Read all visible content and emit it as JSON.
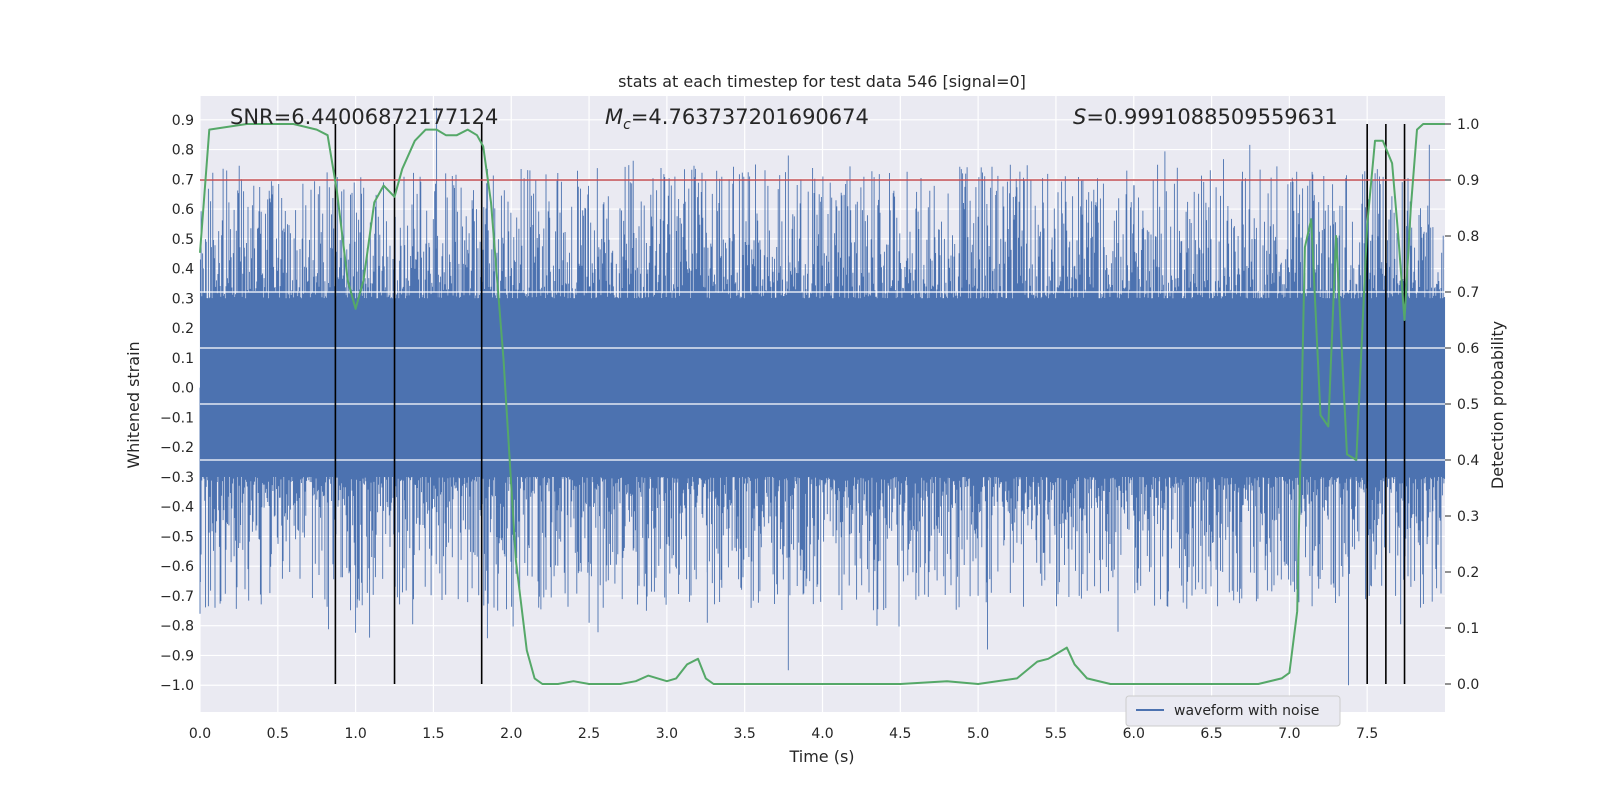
{
  "chart_data": {
    "type": "line",
    "title": "stats at each timestep for test data 546 [signal=0]",
    "xlabel": "Time (s)",
    "ylabel_left": "Whitened strain",
    "ylabel_right": "Detection probability",
    "xlim": [
      0.0,
      8.0
    ],
    "ylim_left": [
      -1.09,
      0.98
    ],
    "ylim_right": [
      -0.05,
      1.05
    ],
    "x_ticks": [
      "0.0",
      "0.5",
      "1.0",
      "1.5",
      "2.0",
      "2.5",
      "3.0",
      "3.5",
      "4.0",
      "4.5",
      "5.0",
      "5.5",
      "6.0",
      "6.5",
      "7.0",
      "7.5"
    ],
    "y_ticks_left": [
      "0.9",
      "0.8",
      "0.7",
      "0.6",
      "0.5",
      "0.4",
      "0.3",
      "0.2",
      "0.1",
      "0.0",
      "−0.1",
      "−0.2",
      "−0.3",
      "−0.4",
      "−0.5",
      "−0.6",
      "−0.7",
      "−0.8",
      "−0.9",
      "−1.0"
    ],
    "y_ticks_right": [
      "1.0",
      "0.9",
      "0.8",
      "0.7",
      "0.6",
      "0.5",
      "0.4",
      "0.3",
      "0.2",
      "0.1",
      "0.0"
    ],
    "annotations": {
      "snr": "SNR=6.44006872177124",
      "mc_symbol": "M",
      "mc_sub": "c",
      "mc_value": "=4.763737201690674",
      "s_symbol": "S",
      "s_value": "=0.9991088509559631"
    },
    "threshold": {
      "value": 0.9,
      "color": "#c44e52"
    },
    "detection_marks_s": [
      0.87,
      1.25,
      1.81,
      7.5,
      7.62,
      7.74
    ],
    "waveform": {
      "name": "waveform with noise",
      "color": "#4c72b0",
      "core_low": -0.3,
      "core_high": 0.3,
      "spike_max": [
        0.94,
        0.78,
        0.74,
        0.68
      ],
      "spike_min": [
        -1.0,
        -0.95,
        -0.88,
        -0.84
      ]
    },
    "probability": {
      "name": "detection probability",
      "color": "#55a868",
      "t": [
        0.0,
        0.06,
        0.3,
        0.6,
        0.75,
        0.82,
        0.88,
        0.95,
        1.0,
        1.05,
        1.12,
        1.18,
        1.25,
        1.3,
        1.38,
        1.45,
        1.52,
        1.58,
        1.65,
        1.72,
        1.78,
        1.82,
        1.87,
        1.95,
        2.03,
        2.1,
        2.15,
        2.2,
        2.3,
        2.4,
        2.5,
        2.7,
        2.8,
        2.88,
        3.0,
        3.06,
        3.13,
        3.2,
        3.25,
        3.3,
        3.5,
        3.8,
        4.0,
        4.2,
        4.5,
        4.8,
        5.0,
        5.25,
        5.38,
        5.45,
        5.57,
        5.62,
        5.7,
        5.85,
        6.0,
        6.2,
        6.5,
        6.8,
        6.95,
        7.0,
        7.05,
        7.1,
        7.14,
        7.2,
        7.25,
        7.3,
        7.37,
        7.43,
        7.5,
        7.55,
        7.6,
        7.66,
        7.7,
        7.74,
        7.78,
        7.82,
        7.86,
        7.9,
        7.95,
        8.0
      ],
      "p": [
        0.77,
        0.99,
        1.0,
        1.0,
        0.99,
        0.98,
        0.88,
        0.72,
        0.67,
        0.72,
        0.86,
        0.89,
        0.87,
        0.92,
        0.97,
        0.99,
        0.99,
        0.98,
        0.98,
        0.99,
        0.98,
        0.96,
        0.86,
        0.58,
        0.22,
        0.06,
        0.01,
        0.0,
        0.0,
        0.005,
        0.0,
        0.0,
        0.005,
        0.015,
        0.005,
        0.01,
        0.035,
        0.045,
        0.01,
        0.0,
        0.0,
        0.0,
        0.0,
        0.0,
        0.0,
        0.005,
        0.0,
        0.01,
        0.04,
        0.045,
        0.065,
        0.035,
        0.01,
        0.0,
        0.0,
        0.0,
        0.0,
        0.0,
        0.01,
        0.02,
        0.13,
        0.78,
        0.83,
        0.48,
        0.46,
        0.8,
        0.41,
        0.4,
        0.82,
        0.97,
        0.97,
        0.93,
        0.8,
        0.65,
        0.85,
        0.99,
        1.0,
        1.0,
        1.0,
        1.0
      ]
    },
    "legend": {
      "placement": "lower-right",
      "label": "waveform with noise"
    }
  }
}
